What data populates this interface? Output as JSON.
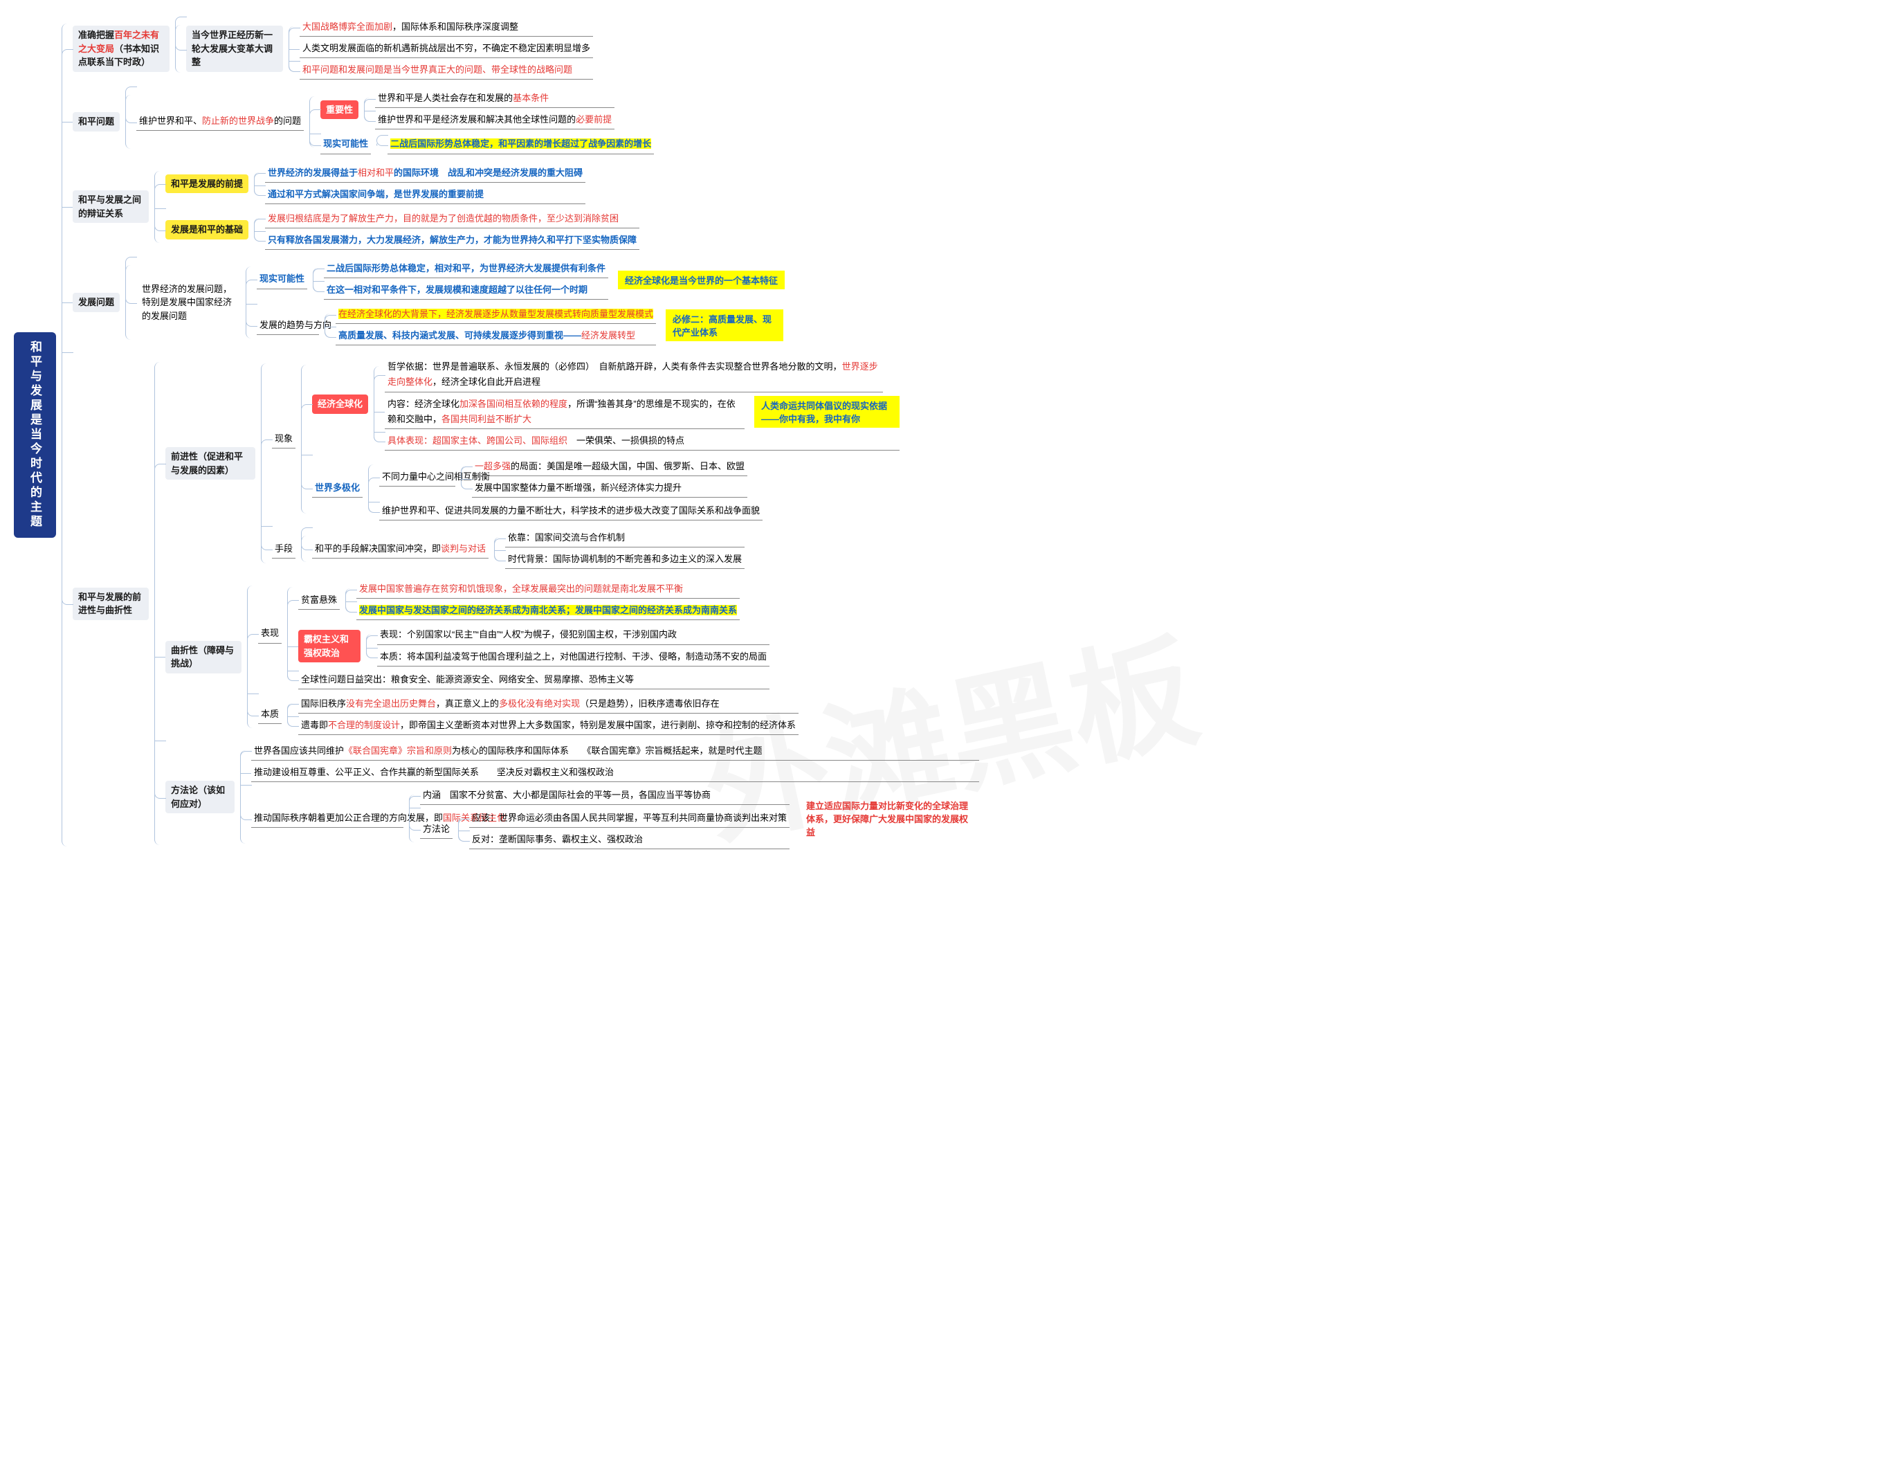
{
  "watermark": "外滩黑板",
  "colors": {
    "rootBg": "#1e3a8a",
    "rootFg": "#ffffff",
    "greyBg": "#eceff4",
    "yellowBg": "#ffeb3b",
    "redTagBg": "#ff5252",
    "border": "#b0c4de",
    "leafUnderline": "#888888",
    "textRed": "#e53935",
    "textBlue": "#1565c0",
    "hlYellow": "#ffff00"
  },
  "fonts": {
    "base_pt": 13,
    "root_pt": 17,
    "weight_bold": 700
  },
  "root": "和平与发展是当今时代的主题",
  "b1": {
    "label": "准确把握",
    "label_red": "百年之未有之大变局",
    "label_tail": "（书本知识点联系当下时政）",
    "mid": "当今世界正经历新一轮大发展大变革大调整",
    "leaves": [
      [
        {
          "t": "大国战略博弈全面加剧",
          "c": "red"
        },
        {
          "t": "，国际体系和国际秩序深度调整",
          "c": "blk"
        }
      ],
      [
        {
          "t": "人类文明发展面临的新机遇新挑战层出不穷，不确定不稳定因素明显增多",
          "c": "blk"
        }
      ],
      [
        {
          "t": "和平问题和发展问题是当今世界真正大的问题、带全球性的战略问题",
          "c": "red"
        }
      ]
    ]
  },
  "b2": {
    "label": "和平问题",
    "mid_pre": "维护世界和平、",
    "mid_red": "防止新的世界战争",
    "mid_suf": "的问题",
    "imp_tag": "重要性",
    "imp_leaves": [
      [
        {
          "t": "世界和平是人类社会存在和发展的",
          "c": "blk"
        },
        {
          "t": "基本条件",
          "c": "red"
        }
      ],
      [
        {
          "t": "维护世界和平是经济发展和解决其他全球性问题的",
          "c": "blk"
        },
        {
          "t": "必要前提",
          "c": "red"
        }
      ]
    ],
    "real_label": "现实可能性",
    "real_leaf": [
      {
        "t": "二战后国际形势总体稳定，和平因素的增长超过了战争因素的增长",
        "c": "blue",
        "hl": true
      }
    ]
  },
  "b3": {
    "label": "和平与发展之间的辩证关系",
    "a_tag": "和平是发展的前提",
    "a_leaves": [
      [
        {
          "t": "世界经济的发展得益于",
          "c": "blue"
        },
        {
          "t": "相对和平",
          "c": "red"
        },
        {
          "t": "的国际环境　战乱和冲突是经济发展的重大阻碍",
          "c": "blue"
        }
      ],
      [
        {
          "t": "通过和平方式解决国家间争端，是世界发展的重要前提",
          "c": "blue"
        }
      ]
    ],
    "b_tag": "发展是和平的基础",
    "b_leaves": [
      [
        {
          "t": "发展归根结底是为了解放生产力，目的就是为了创造优越的物质条件，至少达到消除贫困",
          "c": "red"
        }
      ],
      [
        {
          "t": "只有释放各国发展潜力，大力发展经济，解放生产力，才能为世界持久和平打下坚实物质保障",
          "c": "blue"
        }
      ]
    ]
  },
  "b4": {
    "label": "发展问题",
    "mid": "世界经济的发展问题，特别是发展中国家经济的发展问题",
    "real_label": "现实可能性",
    "real_leaves": [
      [
        {
          "t": "二战后国际形势总体稳定，相对和平，为世界经济大发展提供有利条件",
          "c": "blue"
        }
      ],
      [
        {
          "t": "在这一相对和平条件下，发展规模和速度超越了以往任何一个时期",
          "c": "blue"
        }
      ]
    ],
    "real_side": "经济全球化是当今世界的一个基本特征",
    "trend_label": "发展的趋势与方向",
    "trend_leaves": [
      [
        {
          "t": "在经济全球化的大背景下，经济发展逐步从数量型发展模式转向质量型发展模式",
          "c": "red",
          "hl": true
        }
      ],
      [
        {
          "t": "高质量发展、科技内涵式发展、可持续发展逐步得到重视——",
          "c": "blue"
        },
        {
          "t": "经济发展转型",
          "c": "red"
        }
      ]
    ],
    "trend_side": "必修二：高质量发展、现代产业体系"
  },
  "b5": {
    "label": "和平与发展的前进性与曲折性",
    "fwd_label": "前进性（促进和平与发展的因素）",
    "pheno_label": "现象",
    "glob_tag": "经济全球化",
    "glob_leaves": [
      [
        {
          "t": "哲学依据：世界是普遍联系、永恒发展的（必修四）",
          "c": "blk"
        },
        {
          "t": "　自新航路开辟，人类有条件去实现整合世界各地分散的文明，",
          "c": "blk"
        },
        {
          "t": "世界逐步走向整体化",
          "c": "red"
        },
        {
          "t": "，经济全球化自此开启进程",
          "c": "blk"
        }
      ],
      [
        {
          "t": "内容：经济全球化",
          "c": "blk"
        },
        {
          "t": "加深各国间相互依赖的程度",
          "c": "red"
        },
        {
          "t": "，所谓“独善其身”的思维是不现实的，在依赖和交融中，",
          "c": "blk"
        },
        {
          "t": "各国共同利益不断扩大",
          "c": "red"
        }
      ],
      [
        {
          "t": "具体表现：超国家主体、跨国公司、国际组织",
          "c": "red"
        },
        {
          "t": "　一荣俱荣、一损俱损的特点",
          "c": "blk"
        }
      ]
    ],
    "glob_side": "人类命运共同体倡议的现实依据——你中有我，我中有你",
    "multi_label": "世界多极化",
    "multi_mid": "不同力量中心之间相互制衡",
    "multi_leaves": [
      [
        {
          "t": "一超多强",
          "c": "red"
        },
        {
          "t": "的局面：美国是唯一超级大国，中国、俄罗斯、日本、欧盟",
          "c": "blk"
        }
      ],
      [
        {
          "t": "发展中国家整体力量不断增强，新兴经济体实力提升",
          "c": "blk"
        }
      ]
    ],
    "multi_tail": [
      {
        "t": "维护世界和平、促进共同发展的力量不断壮大，科学技术的进步极大改变了国际关系和战争面貌",
        "c": "blk"
      }
    ],
    "means_label": "手段",
    "means_main": [
      {
        "t": "和平的手段解决国家间冲突，即",
        "c": "blk"
      },
      {
        "t": "谈判与对话",
        "c": "red"
      }
    ],
    "means_leaves": [
      [
        {
          "t": "依靠：国家间交流与合作机制",
          "c": "blk"
        }
      ],
      [
        {
          "t": "时代背景：国际协调机制的不断完善和多边主义的深入发展",
          "c": "blk"
        }
      ]
    ],
    "twist_label": "曲折性（障碍与挑战）",
    "show_label": "表现",
    "poor_label": "贫富悬殊",
    "poor_leaves": [
      [
        {
          "t": "发展中国家普遍存在贫穷和饥饿现象，全球发展最突出的问题就是南北发展不平衡",
          "c": "red"
        }
      ],
      [
        {
          "t": "发展中国家与发达国家之间的经济关系成为南北关系；发展中国家之间的经济关系成为南南关系",
          "c": "blue",
          "hl": true
        }
      ]
    ],
    "hege_tag": "霸权主义和强权政治",
    "hege_leaves": [
      [
        {
          "t": "表现：个别国家以“民主”“自由”“人权”为幌子，侵犯别国主权，干涉别国内政",
          "c": "blk"
        }
      ],
      [
        {
          "t": "本质：将本国利益凌驾于他国合理利益之上，对他国进行控制、干涉、侵略，制造动荡不安的局面",
          "c": "blk"
        }
      ]
    ],
    "global_issue": [
      {
        "t": "全球性问题日益突出：粮食安全、能源资源安全、网络安全、贸易摩擦、恐怖主义等",
        "c": "blk"
      }
    ],
    "ess_label": "本质",
    "ess_leaves": [
      [
        {
          "t": "国际旧秩序",
          "c": "blk"
        },
        {
          "t": "没有完全退出历史舞台",
          "c": "red"
        },
        {
          "t": "，真正意义上的",
          "c": "blk"
        },
        {
          "t": "多极化没有绝对实现",
          "c": "red"
        },
        {
          "t": "（只是趋势），旧秩序遗毒依旧存在",
          "c": "blk"
        }
      ],
      [
        {
          "t": "遗毒即",
          "c": "blk"
        },
        {
          "t": "不合理的制度设计",
          "c": "red"
        },
        {
          "t": "，即帝国主义垄断资本对世界上大多数国家，特别是发展中国家，进行剥削、掠夺和控制的经济体系",
          "c": "blk"
        }
      ]
    ],
    "method_label": "方法论（该如何应对）",
    "method_top": [
      {
        "t": "世界各国应该共同维护",
        "c": "blk"
      },
      {
        "t": "《联合国宪章》宗旨和原则",
        "c": "red"
      },
      {
        "t": "为核心的国际秩序和国际体系　　《联合国宪章》宗旨概括起来，就是时代主题",
        "c": "blk"
      }
    ],
    "method_mid": [
      {
        "t": "推动建设相互尊重、公平正义、合作共赢的新型国际关系　　坚决反对霸权主义和强权政治",
        "c": "blk"
      }
    ],
    "demo_label_a": "推动国际秩序朝着更加公正合理的方向发展，即",
    "demo_label_b": "国际关系民主化",
    "demo_n": [
      {
        "t": "内涵　国家不分贫富、大小都是国际社会的平等一员，各国应当平等协商",
        "c": "blk"
      }
    ],
    "demo_m_label": "方法论",
    "demo_m_leaves": [
      [
        {
          "t": "应该：世界命运必须由各国人民共同掌握，平等互利共同商量协商谈判出来对策",
          "c": "blk"
        }
      ],
      [
        {
          "t": "反对：垄断国际事务、霸权主义、强权政治",
          "c": "blk"
        }
      ]
    ],
    "demo_side": "建立适应国际力量对比新变化的全球治理体系，更好保障广大发展中国家的发展权益"
  }
}
